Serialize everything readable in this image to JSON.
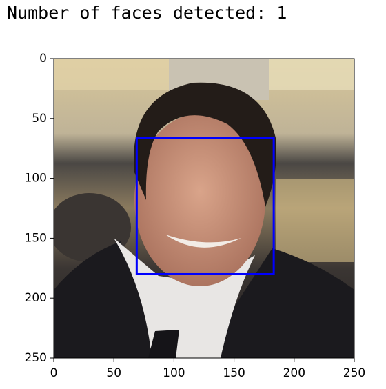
{
  "output_text": "Number of faces detected: 1",
  "chart_data": {
    "type": "image",
    "xlim": [
      0,
      250
    ],
    "ylim": [
      250,
      0
    ],
    "xticks": [
      0,
      50,
      100,
      150,
      200,
      250
    ],
    "yticks": [
      0,
      50,
      100,
      150,
      200,
      250
    ],
    "box": {
      "x0": 69,
      "y0": 66,
      "x1": 183,
      "y1": 180,
      "color": "#0000ff"
    }
  }
}
